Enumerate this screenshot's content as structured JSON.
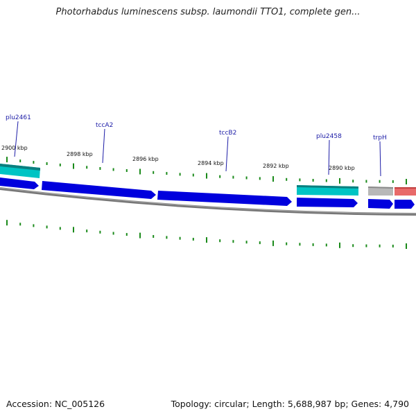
{
  "title": "Photorhabdus luminescens subsp. laumondii TTO1, complete gen...",
  "footer": {
    "accession": "Accession: NC_005126",
    "summary": "Topology: circular; Length: 5,688,987 bp; Genes: 4,790"
  },
  "kbp_labels": [
    "2900 kbp",
    "2898 kbp",
    "2896 kbp",
    "2894 kbp",
    "2892 kbp",
    "2890 kbp"
  ],
  "gene_labels": [
    "plu2461",
    "tccA2",
    "tccB2",
    "plu2458",
    "trpH"
  ],
  "colors": {
    "cds": "#0000dd",
    "gene_cyan": "#00c4c4",
    "gene_gray": "#b8b8b8",
    "gene_red": "#e86a6a",
    "tick": "#1a8a1a",
    "backbone": "#777777",
    "label": "#1a1aa6"
  }
}
